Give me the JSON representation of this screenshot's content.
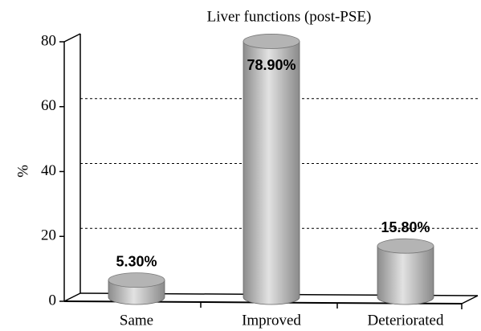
{
  "chart_data": {
    "type": "bar",
    "title": "Liver functions (post-PSE)",
    "ylabel": "%",
    "categories": [
      "Same",
      "Improved",
      "Deteriorated"
    ],
    "values": [
      5.3,
      78.9,
      15.8
    ],
    "value_labels": [
      "5.30%",
      "78.90%",
      "15.80%"
    ],
    "color": "#b4b4b4",
    "ylim": [
      0,
      80
    ],
    "yticks": [
      0,
      20,
      40,
      60,
      80
    ],
    "grid": true
  }
}
